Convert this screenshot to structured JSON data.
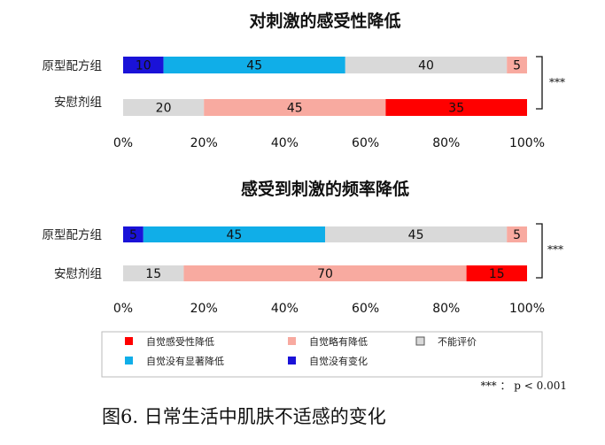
{
  "chart_data": [
    {
      "type": "bar",
      "orientation": "horizontal",
      "stacked": "percent",
      "title": "对刺激的感受性降低",
      "categories": [
        "原型配方组",
        "安慰剂组"
      ],
      "series": [
        {
          "name": "自觉没有变化",
          "color": "#1a12d8",
          "values": [
            10,
            0
          ]
        },
        {
          "name": "自觉没有显著降低",
          "color": "#10aee8",
          "values": [
            45,
            0
          ]
        },
        {
          "name": "不能评价",
          "color": "#d9d9d9",
          "values": [
            40,
            20
          ]
        },
        {
          "name": "自觉略有降低",
          "color": "#f8aaa0",
          "values": [
            5,
            45
          ]
        },
        {
          "name": "自觉感受性降低",
          "color": "#ff0000",
          "values": [
            0,
            35
          ]
        }
      ],
      "xlim": [
        0,
        100
      ],
      "xticks": [
        "0%",
        "20%",
        "40%",
        "60%",
        "80%",
        "100%"
      ],
      "significance": "***"
    },
    {
      "type": "bar",
      "orientation": "horizontal",
      "stacked": "percent",
      "title": "感受到刺激的频率降低",
      "categories": [
        "原型配方组",
        "安慰剂组"
      ],
      "series": [
        {
          "name": "自觉没有变化",
          "color": "#1a12d8",
          "values": [
            5,
            0
          ]
        },
        {
          "name": "自觉没有显著降低",
          "color": "#10aee8",
          "values": [
            45,
            0
          ]
        },
        {
          "name": "不能评价",
          "color": "#d9d9d9",
          "values": [
            45,
            15
          ]
        },
        {
          "name": "自觉略有降低",
          "color": "#f8aaa0",
          "values": [
            5,
            70
          ]
        },
        {
          "name": "自觉感受性降低",
          "color": "#ff0000",
          "values": [
            0,
            15
          ]
        }
      ],
      "xlim": [
        0,
        100
      ],
      "xticks": [
        "0%",
        "20%",
        "40%",
        "60%",
        "80%",
        "100%"
      ],
      "significance": "***"
    }
  ],
  "legend": [
    {
      "label": "自觉感受性降低",
      "color": "#ff0000"
    },
    {
      "label": "自觉略有降低",
      "color": "#f8aaa0"
    },
    {
      "label": "不能评价",
      "color": "#d9d9d9"
    },
    {
      "label": "自觉没有显著降低",
      "color": "#10aee8"
    },
    {
      "label": "自觉没有变化",
      "color": "#1a12d8"
    }
  ],
  "footnote": "*** ： p < 0.001",
  "caption": "图6. 日常生活中肌肤不适感的变化"
}
